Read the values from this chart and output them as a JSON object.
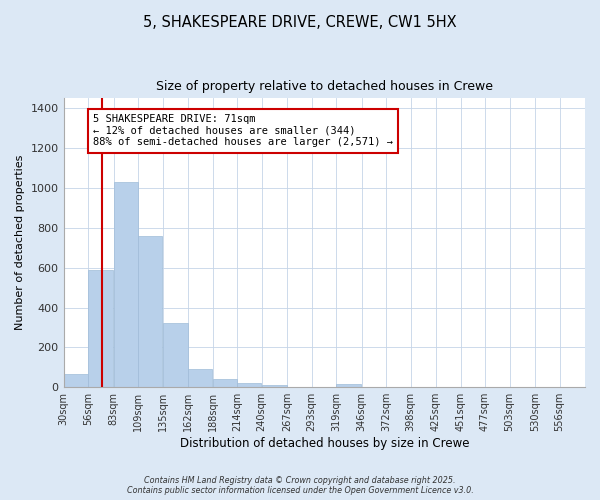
{
  "title": "5, SHAKESPEARE DRIVE, CREWE, CW1 5HX",
  "subtitle": "Size of property relative to detached houses in Crewe",
  "xlabel": "Distribution of detached houses by size in Crewe",
  "ylabel": "Number of detached properties",
  "bins": [
    "30sqm",
    "56sqm",
    "83sqm",
    "109sqm",
    "135sqm",
    "162sqm",
    "188sqm",
    "214sqm",
    "240sqm",
    "267sqm",
    "293sqm",
    "319sqm",
    "346sqm",
    "372sqm",
    "398sqm",
    "425sqm",
    "451sqm",
    "477sqm",
    "503sqm",
    "530sqm",
    "556sqm"
  ],
  "values": [
    65,
    590,
    1030,
    760,
    320,
    90,
    40,
    20,
    12,
    0,
    0,
    15,
    0,
    0,
    0,
    0,
    0,
    0,
    0,
    0,
    0
  ],
  "bar_color": "#b8d0ea",
  "bar_edgecolor": "#a0bcd8",
  "vline_x": 71,
  "vline_color": "#cc0000",
  "annotation_text": "5 SHAKESPEARE DRIVE: 71sqm\n← 12% of detached houses are smaller (344)\n88% of semi-detached houses are larger (2,571) →",
  "annotation_box_edgecolor": "#cc0000",
  "annotation_box_facecolor": "#ffffff",
  "ylim": [
    0,
    1450
  ],
  "xlim_start": 30,
  "xlim_end": 583,
  "plot_bg_color": "#ffffff",
  "fig_bg_color": "#dce8f5",
  "footer1": "Contains HM Land Registry data © Crown copyright and database right 2025.",
  "footer2": "Contains public sector information licensed under the Open Government Licence v3.0.",
  "bin_width": 26.5,
  "bin_start": 30
}
